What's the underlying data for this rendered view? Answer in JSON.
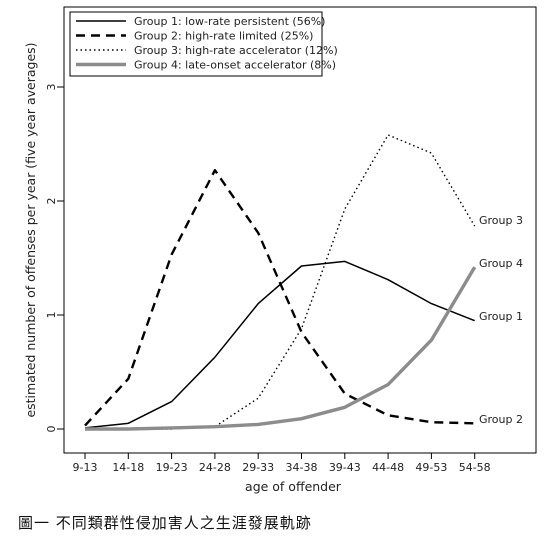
{
  "caption": "圖一 不同類群性侵加害人之生涯發展軌跡",
  "chart_data": {
    "type": "line",
    "xlabel": "age of offender",
    "ylabel": "estimated number of offenses per year (five year averages)",
    "categories": [
      "9-13",
      "14-18",
      "19-23",
      "24-28",
      "29-33",
      "34-38",
      "39-43",
      "44-48",
      "49-53",
      "54-58"
    ],
    "ylim": [
      0,
      3
    ],
    "yticks": [
      0,
      1,
      2,
      3
    ],
    "legend_position": "top-left",
    "series": [
      {
        "name": "Group 1: low-rate persistent (56%)",
        "end_label": "Group 1",
        "style": "solid",
        "color": "#000000",
        "values": [
          0.01,
          0.05,
          0.24,
          0.63,
          1.1,
          1.43,
          1.47,
          1.31,
          1.1,
          0.95
        ]
      },
      {
        "name": "Group 2: high-rate limited (25%)",
        "end_label": "Group 2",
        "style": "dashed",
        "color": "#000000",
        "values": [
          0.03,
          0.44,
          1.53,
          2.27,
          1.72,
          0.85,
          0.31,
          0.12,
          0.06,
          0.05
        ]
      },
      {
        "name": "Group 3: high-rate accelerator (12%)",
        "end_label": "Group 3",
        "style": "dotted",
        "color": "#000000",
        "values": [
          0.0,
          0.0,
          0.0,
          0.02,
          0.27,
          0.88,
          1.93,
          2.58,
          2.42,
          1.78
        ]
      },
      {
        "name": "Group 4: late-onset accelerator (8%)",
        "end_label": "Group 4",
        "style": "thick-gray",
        "color": "#8c8c8c",
        "values": [
          0.0,
          0.0,
          0.01,
          0.02,
          0.04,
          0.09,
          0.19,
          0.39,
          0.78,
          1.42
        ]
      }
    ]
  }
}
